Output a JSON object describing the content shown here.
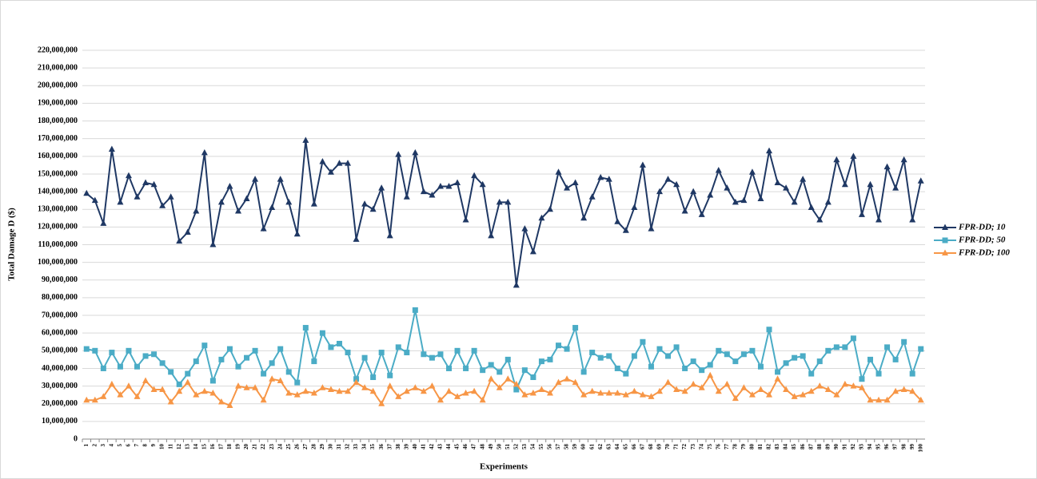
{
  "chart_data": {
    "type": "line",
    "y_label": "Total Damage D ($)",
    "x_label": "Experiments",
    "legend": "right",
    "grid": true,
    "categories": [
      "1",
      "2",
      "3",
      "4",
      "5",
      "6",
      "7",
      "8",
      "9",
      "10",
      "11",
      "12",
      "13",
      "14",
      "15",
      "16",
      "17",
      "18",
      "19",
      "20",
      "21",
      "22",
      "23",
      "24",
      "25",
      "26",
      "27",
      "28",
      "29",
      "30",
      "31",
      "32",
      "33",
      "34",
      "35",
      "36",
      "37",
      "38",
      "39",
      "40",
      "41",
      "42",
      "43",
      "44",
      "45",
      "46",
      "47",
      "48",
      "49",
      "50",
      "51",
      "52",
      "53",
      "54",
      "55",
      "56",
      "57",
      "58",
      "59",
      "60",
      "61",
      "62",
      "63",
      "64",
      "65",
      "66",
      "67",
      "68",
      "69",
      "70",
      "71",
      "72",
      "73",
      "74",
      "75",
      "76",
      "77",
      "78",
      "79",
      "80",
      "81",
      "82",
      "83",
      "84",
      "85",
      "86",
      "87",
      "88",
      "89",
      "90",
      "91",
      "92",
      "93",
      "94",
      "95",
      "96",
      "97",
      "98",
      "99",
      "100"
    ],
    "ylim": [
      0,
      220000000
    ],
    "yticks": [
      0,
      {
        "value": 10000000,
        "label": "10,000,000"
      },
      {
        "value": 20000000,
        "label": "20,000,000"
      },
      {
        "value": 30000000,
        "label": "30,000,000"
      },
      {
        "value": 40000000,
        "label": "40,000,000"
      },
      {
        "value": 50000000,
        "label": "50,000,000"
      },
      {
        "value": 60000000,
        "label": "60,000,000"
      },
      {
        "value": 70000000,
        "label": "70,000,000"
      },
      {
        "value": 80000000,
        "label": "80,000,000"
      },
      {
        "value": 90000000,
        "label": "90,000,000"
      },
      {
        "value": 100000000,
        "label": "100,000,000"
      },
      {
        "value": 110000000,
        "label": "110,000,000"
      },
      {
        "value": 120000000,
        "label": "120,000,000"
      },
      {
        "value": 130000000,
        "label": "130,000,000"
      },
      {
        "value": 140000000,
        "label": "140,000,000"
      },
      {
        "value": 150000000,
        "label": "150,000,000"
      },
      {
        "value": 160000000,
        "label": "160,000,000"
      },
      {
        "value": 170000000,
        "label": "170,000,000"
      },
      {
        "value": 180000000,
        "label": "180,000,000"
      },
      {
        "value": 190000000,
        "label": "190,000,000"
      },
      {
        "value": 200000000,
        "label": "200,000,000"
      },
      {
        "value": 210000000,
        "label": "210,000,000"
      },
      {
        "value": 220000000,
        "label": "220,000,000"
      }
    ],
    "series": [
      {
        "name": "FPR-DD; 10",
        "color": "#1f3864",
        "marker": "triangle",
        "values": [
          139000000,
          135000000,
          122000000,
          164000000,
          134000000,
          149000000,
          137000000,
          145000000,
          144000000,
          132000000,
          137000000,
          112000000,
          117000000,
          129000000,
          162000000,
          110000000,
          134000000,
          143000000,
          129000000,
          136000000,
          147000000,
          119000000,
          131000000,
          147000000,
          134000000,
          116000000,
          169000000,
          133000000,
          157000000,
          151000000,
          156000000,
          156000000,
          113000000,
          133000000,
          130000000,
          142000000,
          115000000,
          161000000,
          137000000,
          162000000,
          140000000,
          138000000,
          143000000,
          143000000,
          145000000,
          124000000,
          149000000,
          144000000,
          115000000,
          134000000,
          134000000,
          87000000,
          119000000,
          106000000,
          125000000,
          130000000,
          151000000,
          142000000,
          145000000,
          125000000,
          137000000,
          148000000,
          147000000,
          123000000,
          118000000,
          131000000,
          155000000,
          119000000,
          140000000,
          147000000,
          144000000,
          129000000,
          140000000,
          127000000,
          138000000,
          152000000,
          142000000,
          134000000,
          135000000,
          151000000,
          136000000,
          163000000,
          145000000,
          142000000,
          134000000,
          147000000,
          131000000,
          124000000,
          134000000,
          158000000,
          144000000,
          160000000,
          127000000,
          144000000,
          124000000,
          154000000,
          142000000,
          158000000,
          124000000,
          146000000
        ]
      },
      {
        "name": "FPR-DD; 50",
        "color": "#4bacc6",
        "marker": "square",
        "values": [
          51000000,
          50000000,
          40000000,
          49000000,
          41000000,
          50000000,
          41000000,
          47000000,
          48000000,
          43000000,
          38000000,
          31000000,
          37000000,
          44000000,
          53000000,
          33000000,
          45000000,
          51000000,
          41000000,
          46000000,
          50000000,
          37000000,
          43000000,
          51000000,
          38000000,
          32000000,
          63000000,
          44000000,
          60000000,
          52000000,
          54000000,
          49000000,
          34000000,
          46000000,
          35000000,
          49000000,
          36000000,
          52000000,
          49000000,
          73000000,
          48000000,
          46000000,
          48000000,
          40000000,
          50000000,
          40000000,
          50000000,
          39000000,
          42000000,
          38000000,
          45000000,
          28000000,
          39000000,
          35000000,
          44000000,
          45000000,
          53000000,
          51000000,
          63000000,
          38000000,
          49000000,
          46000000,
          47000000,
          40000000,
          37000000,
          47000000,
          55000000,
          41000000,
          51000000,
          47000000,
          52000000,
          40000000,
          44000000,
          39000000,
          42000000,
          50000000,
          48000000,
          44000000,
          48000000,
          50000000,
          41000000,
          62000000,
          38000000,
          43000000,
          46000000,
          47000000,
          37000000,
          44000000,
          50000000,
          52000000,
          52000000,
          57000000,
          34000000,
          45000000,
          37000000,
          52000000,
          45000000,
          55000000,
          37000000,
          51000000
        ]
      },
      {
        "name": "FPR-DD; 100",
        "color": "#f79646",
        "marker": "triangle",
        "values": [
          22000000,
          22000000,
          24000000,
          31000000,
          25000000,
          30000000,
          24000000,
          33000000,
          28000000,
          28000000,
          21000000,
          27000000,
          32000000,
          25000000,
          27000000,
          26000000,
          21000000,
          19000000,
          30000000,
          29000000,
          29000000,
          22000000,
          34000000,
          33000000,
          26000000,
          25000000,
          27000000,
          26000000,
          29000000,
          28000000,
          27000000,
          27000000,
          32000000,
          29000000,
          27000000,
          20000000,
          30000000,
          24000000,
          27000000,
          29000000,
          27000000,
          30000000,
          22000000,
          27000000,
          24000000,
          26000000,
          27000000,
          22000000,
          34000000,
          29000000,
          34000000,
          31000000,
          25000000,
          26000000,
          28000000,
          26000000,
          32000000,
          34000000,
          32000000,
          25000000,
          27000000,
          26000000,
          26000000,
          26000000,
          25000000,
          27000000,
          25000000,
          24000000,
          27000000,
          32000000,
          28000000,
          27000000,
          31000000,
          29000000,
          36000000,
          27000000,
          31000000,
          23000000,
          29000000,
          25000000,
          28000000,
          25000000,
          34000000,
          28000000,
          24000000,
          25000000,
          27000000,
          30000000,
          28000000,
          25000000,
          31000000,
          30000000,
          29000000,
          22000000,
          22000000,
          22000000,
          27000000,
          28000000,
          27000000,
          22000000
        ]
      }
    ]
  }
}
